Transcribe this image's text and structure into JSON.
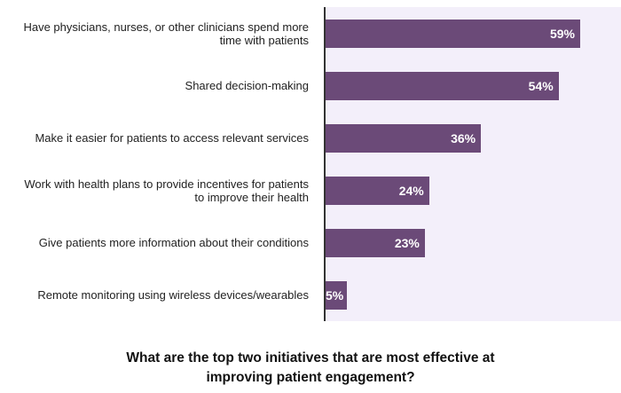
{
  "chart_data": {
    "type": "bar",
    "orientation": "horizontal",
    "title": "What are the top two initiatives that are most effective at improving patient engagement?",
    "categories": [
      "Have physicians, nurses, or other clinicians spend more time with patients",
      "Shared decision-making",
      "Make it easier for patients to access relevant services",
      "Work with health plans to provide incentives for patients to improve their health",
      "Give patients more information about their conditions",
      "Remote monitoring using wireless devices/wearables"
    ],
    "values": [
      59,
      54,
      36,
      24,
      23,
      5
    ],
    "value_labels": [
      "59%",
      "54%",
      "36%",
      "24%",
      "23%",
      "5%"
    ],
    "color": "#6b4a78"
  }
}
